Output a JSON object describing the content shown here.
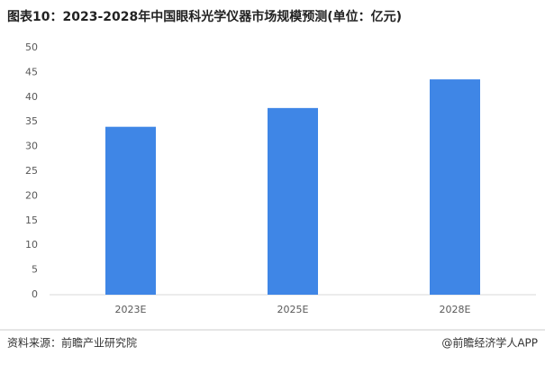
{
  "chart_data": {
    "type": "bar",
    "title": "图表10：2023-2028年中国眼科光学仪器市场规模预测(单位：亿元)",
    "categories": [
      "2023E",
      "2025E",
      "2028E"
    ],
    "values": [
      34,
      37.8,
      43.6
    ],
    "color": "#3f86e6",
    "ylim": [
      0,
      50
    ],
    "yticks": [
      0,
      5,
      10,
      15,
      20,
      25,
      30,
      35,
      40,
      45,
      50
    ],
    "grid": false,
    "source": "资料来源：前瞻产业研究院",
    "credit": "@前瞻经济学人APP"
  }
}
